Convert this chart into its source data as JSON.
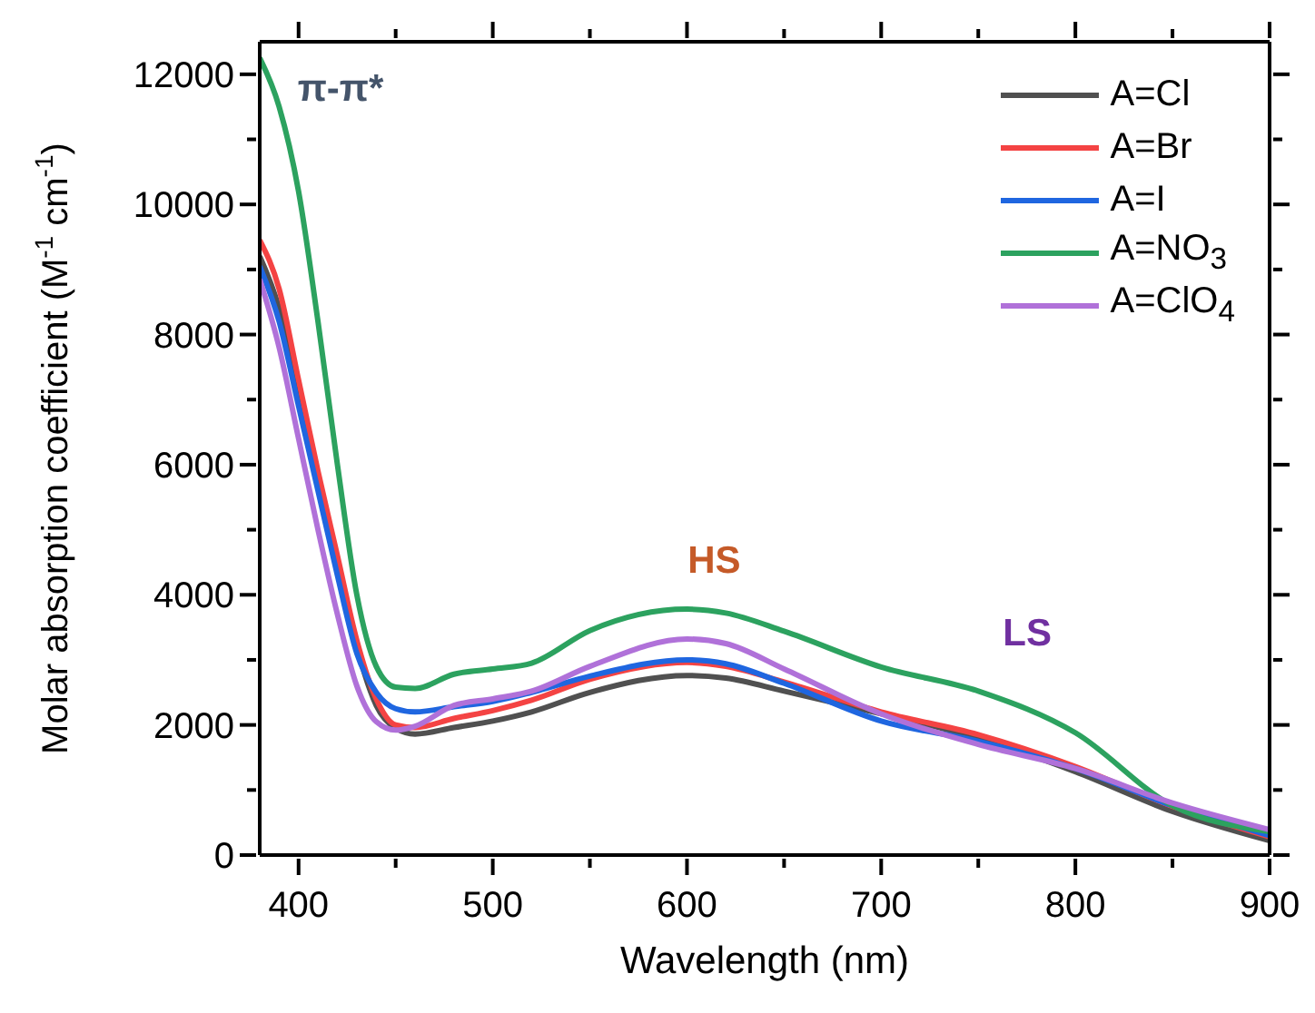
{
  "chart_data": {
    "type": "line",
    "xlabel": "Wavelength (nm)",
    "ylabel": "Molar absorption coefficient (M$^{-1}$ cm$^{-1}$)",
    "x": [
      380,
      390,
      400,
      410,
      420,
      430,
      440,
      450,
      460,
      480,
      500,
      520,
      550,
      600,
      620,
      650,
      700,
      750,
      800,
      850,
      900
    ],
    "series": [
      {
        "name": "A=Cl",
        "color": "#505050",
        "values": [
          9200,
          8400,
          7100,
          5800,
          4500,
          3200,
          2300,
          1950,
          1860,
          1960,
          2060,
          2200,
          2500,
          2760,
          2720,
          2520,
          2170,
          1800,
          1280,
          670,
          220
        ]
      },
      {
        "name": "A=Br",
        "color": "#f44343",
        "values": [
          9450,
          8700,
          7300,
          5900,
          4600,
          3300,
          2400,
          2000,
          1960,
          2100,
          2220,
          2380,
          2700,
          2960,
          2900,
          2660,
          2200,
          1850,
          1360,
          750,
          280
        ]
      },
      {
        "name": "A=I",
        "color": "#1f66e0",
        "values": [
          9050,
          8200,
          6900,
          5600,
          4300,
          3100,
          2500,
          2250,
          2200,
          2280,
          2360,
          2500,
          2750,
          3000,
          2940,
          2640,
          2060,
          1750,
          1330,
          760,
          300
        ]
      },
      {
        "name": "A=NO$_{3}$",
        "color": "#2ca25f",
        "values": [
          12250,
          11500,
          10200,
          8200,
          6000,
          4000,
          2900,
          2580,
          2560,
          2780,
          2860,
          2950,
          3450,
          3780,
          3720,
          3440,
          2890,
          2520,
          1880,
          760,
          360
        ]
      },
      {
        "name": "A=ClO$_{4}$",
        "color": "#b071d9",
        "values": [
          8850,
          7800,
          6400,
          5000,
          3700,
          2600,
          2050,
          1920,
          1980,
          2300,
          2400,
          2520,
          2900,
          3320,
          3250,
          2860,
          2170,
          1700,
          1330,
          800,
          390
        ]
      }
    ],
    "xlim": [
      380,
      900
    ],
    "xticks": [
      400,
      {
        "value": 450,
        "label": null
      },
      500,
      {
        "value": 550,
        "label": null
      },
      600,
      {
        "value": 650,
        "label": null
      },
      700,
      {
        "value": 750,
        "label": null
      },
      800,
      {
        "value": 850,
        "label": null
      },
      900
    ],
    "ylim": [
      0,
      12500
    ],
    "yticks": [
      0,
      {
        "value": 1000,
        "label": null
      },
      2000,
      {
        "value": 3000,
        "label": null
      },
      4000,
      {
        "value": 5000,
        "label": null
      },
      6000,
      {
        "value": 7000,
        "label": null
      },
      8000,
      {
        "value": 9000,
        "label": null
      },
      10000,
      {
        "value": 11000,
        "label": null
      },
      12000
    ],
    "legend": "top right",
    "grid": false,
    "marker": "none",
    "line_style": "solid",
    "annotations": [
      "π-π*",
      "HS",
      "LS"
    ]
  }
}
